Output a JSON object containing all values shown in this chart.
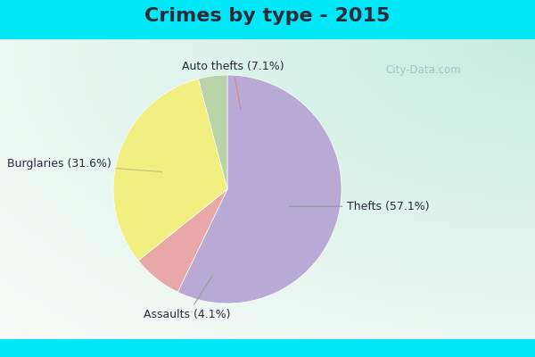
{
  "title": "Crimes by type - 2015",
  "slices": [
    {
      "label": "Thefts (57.1%)",
      "value": 57.1,
      "color": "#b8aad4"
    },
    {
      "label": "Auto thefts (7.1%)",
      "value": 7.1,
      "color": "#e8a8a8"
    },
    {
      "label": "Burglaries (31.6%)",
      "value": 31.6,
      "color": "#f0ef80"
    },
    {
      "label": "Assaults (4.1%)",
      "value": 4.1,
      "color": "#b8d4a8"
    }
  ],
  "startangle": 90,
  "title_fontsize": 16,
  "title_fontweight": "bold",
  "title_color": "#2a2a3a",
  "cyan_bar_color": "#00e8f8",
  "main_bg_color": "#d8f0e8",
  "watermark": "City-Data.com",
  "label_fontsize": 9,
  "label_color": "#2a2a3a"
}
